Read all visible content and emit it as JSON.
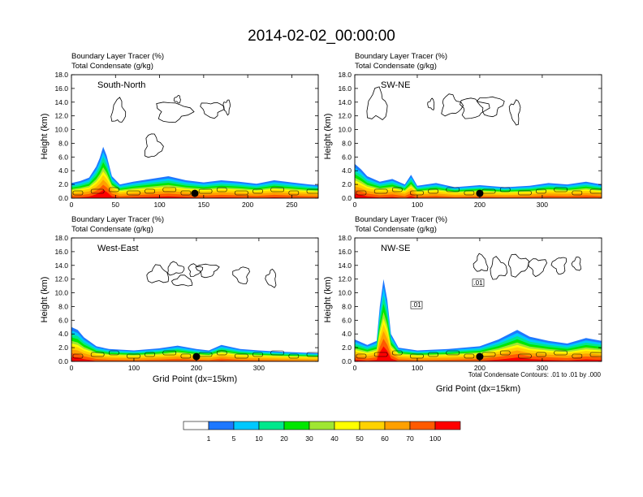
{
  "figure": {
    "title": "2014-02-02_00:00:00",
    "panel_title_line1": "Boundary Layer Tracer   (%)",
    "panel_title_line2": "Total Condensate   (g/kg)",
    "contour_note": "Total Condensate Contours: .01 to .01 by .000",
    "contour_label": ".01"
  },
  "chart_data": [
    {
      "type": "heatmap",
      "label": "South-North",
      "ylabel": "Height (km)",
      "xlabel": "",
      "xlim": [
        0,
        280
      ],
      "ylim": [
        0,
        18
      ],
      "xticks": [
        0,
        50,
        100,
        150,
        200,
        250
      ],
      "yticks": [
        "0.0",
        "2.0",
        "4.0",
        "6.0",
        "8.0",
        "10.0",
        "12.0",
        "14.0",
        "16.0",
        "18.0"
      ],
      "tracer_top_km": [
        [
          0,
          2.2
        ],
        [
          10,
          2.5
        ],
        [
          20,
          3.0
        ],
        [
          28,
          4.6
        ],
        [
          32,
          5.8
        ],
        [
          36,
          7.5
        ],
        [
          40,
          6.2
        ],
        [
          46,
          3.2
        ],
        [
          55,
          2.0
        ],
        [
          70,
          2.4
        ],
        [
          90,
          2.8
        ],
        [
          110,
          3.2
        ],
        [
          130,
          2.6
        ],
        [
          150,
          2.3
        ],
        [
          170,
          2.6
        ],
        [
          190,
          2.4
        ],
        [
          210,
          2.1
        ],
        [
          230,
          2.6
        ],
        [
          250,
          2.3
        ],
        [
          270,
          2.0
        ],
        [
          280,
          1.9
        ]
      ],
      "marker_x": 140
    },
    {
      "type": "heatmap",
      "label": "SW-NE",
      "ylabel": "Height (km)",
      "xlabel": "",
      "xlim": [
        0,
        395
      ],
      "ylim": [
        0,
        18
      ],
      "xticks": [
        0,
        100,
        200,
        300
      ],
      "yticks": [
        "0.0",
        "2.0",
        "4.0",
        "6.0",
        "8.0",
        "10.0",
        "12.0",
        "14.0",
        "16.0",
        "18.0"
      ],
      "tracer_top_km": [
        [
          0,
          5.0
        ],
        [
          10,
          4.2
        ],
        [
          20,
          3.2
        ],
        [
          40,
          2.4
        ],
        [
          60,
          2.8
        ],
        [
          80,
          2.0
        ],
        [
          90,
          3.4
        ],
        [
          100,
          1.8
        ],
        [
          130,
          2.2
        ],
        [
          160,
          1.6
        ],
        [
          200,
          1.9
        ],
        [
          240,
          1.6
        ],
        [
          280,
          1.8
        ],
        [
          310,
          2.2
        ],
        [
          340,
          2.0
        ],
        [
          370,
          2.4
        ],
        [
          395,
          2.0
        ]
      ],
      "marker_x": 200
    },
    {
      "type": "heatmap",
      "label": "West-East",
      "ylabel": "Height (km)",
      "xlabel": "Grid Point (dx=15km)",
      "xlim": [
        0,
        395
      ],
      "ylim": [
        0,
        18
      ],
      "xticks": [
        0,
        100,
        200,
        300
      ],
      "yticks": [
        "0.0",
        "2.0",
        "4.0",
        "6.0",
        "8.0",
        "10.0",
        "12.0",
        "14.0",
        "16.0",
        "18.0"
      ],
      "tracer_top_km": [
        [
          0,
          5.0
        ],
        [
          10,
          4.6
        ],
        [
          20,
          3.5
        ],
        [
          40,
          2.2
        ],
        [
          60,
          1.8
        ],
        [
          100,
          1.6
        ],
        [
          140,
          1.9
        ],
        [
          170,
          2.3
        ],
        [
          200,
          1.8
        ],
        [
          220,
          1.6
        ],
        [
          240,
          2.4
        ],
        [
          270,
          1.8
        ],
        [
          300,
          1.6
        ],
        [
          340,
          1.4
        ],
        [
          395,
          1.2
        ]
      ],
      "marker_x": 200
    },
    {
      "type": "heatmap",
      "label": "NW-SE",
      "ylabel": "Height (km)",
      "xlabel": "Grid Point (dx=15km)",
      "xlim": [
        0,
        395
      ],
      "ylim": [
        0,
        18
      ],
      "xticks": [
        0,
        100,
        200,
        300
      ],
      "yticks": [
        "0.0",
        "2.0",
        "4.0",
        "6.0",
        "8.0",
        "10.0",
        "12.0",
        "14.0",
        "16.0",
        "18.0"
      ],
      "tracer_top_km": [
        [
          0,
          3.2
        ],
        [
          20,
          2.4
        ],
        [
          35,
          3.0
        ],
        [
          40,
          8.0
        ],
        [
          46,
          12.0
        ],
        [
          52,
          9.0
        ],
        [
          58,
          4.0
        ],
        [
          70,
          2.0
        ],
        [
          100,
          1.6
        ],
        [
          150,
          1.8
        ],
        [
          200,
          2.2
        ],
        [
          230,
          3.2
        ],
        [
          260,
          4.6
        ],
        [
          280,
          3.6
        ],
        [
          310,
          3.0
        ],
        [
          340,
          2.6
        ],
        [
          370,
          3.4
        ],
        [
          395,
          3.0
        ]
      ],
      "marker_x": 200
    }
  ],
  "colorbar": {
    "colors": [
      "#ffffff",
      "#1e78ff",
      "#00c8ff",
      "#00e88c",
      "#00e600",
      "#a0e632",
      "#ffff00",
      "#ffd200",
      "#ffa000",
      "#ff5a00",
      "#ff0000"
    ],
    "labels": [
      "1",
      "5",
      "10",
      "20",
      "30",
      "40",
      "50",
      "60",
      "70",
      "100"
    ]
  }
}
